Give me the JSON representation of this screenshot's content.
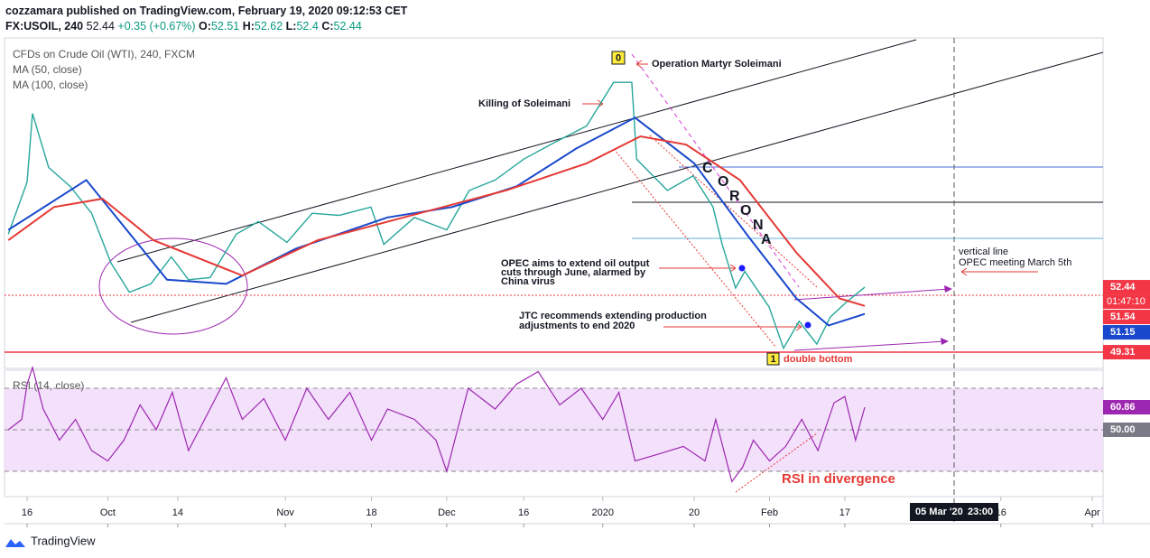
{
  "chart_data": {
    "type": "line",
    "header": {
      "published": "cozzamara published on TradingView.com, February 19, 2020 09:12:53 CET",
      "symbol": "FX:USOIL, 240",
      "last": 52.44,
      "change": "+0.35 (+0.67%)",
      "ohlc": [
        {
          "key": "O:",
          "value": 52.51
        },
        {
          "key": "H:",
          "value": 52.62
        },
        {
          "key": "L:",
          "value": 52.4
        },
        {
          "key": "C:",
          "value": 52.44
        }
      ]
    },
    "title": "CFDs on Crude Oil (WTI), 240, FXCM",
    "color": "#26a69a",
    "x": [
      -3.5,
      0,
      1,
      4,
      8,
      12,
      15.6,
      19,
      23,
      26.8,
      30,
      34,
      38.9,
      43,
      48.3,
      53,
      58,
      63.9,
      66.3,
      72,
      78,
      82.2,
      87,
      92.3,
      98,
      104,
      109,
      112.4,
      113.3,
      119,
      123.8,
      127.5,
      129.2,
      131.7,
      133.4,
      137.9,
      140.6,
      143.5,
      146.8,
      149.3,
      152.2,
      155.7
    ],
    "values": [
      55,
      57.5,
      60.8,
      58.2,
      57.3,
      56,
      53.6,
      52.2,
      52.6,
      53.9,
      52.8,
      52.9,
      55,
      55.6,
      54.6,
      56,
      55.9,
      56.3,
      54.5,
      55.8,
      55.2,
      57.1,
      57.6,
      58.6,
      59.4,
      60.2,
      62.3,
      62.3,
      58.6,
      57.1,
      57.8,
      56.3,
      54.5,
      52.4,
      53.2,
      51.5,
      49.5,
      50.8,
      49.7,
      51,
      51.7,
      52.44
    ],
    "series": [
      {
        "name": "MA (50, close)",
        "color": "#1848cc",
        "x": [
          -3.5,
          11,
          26,
          37,
          50,
          67,
          79,
          91,
          102,
          113,
          124,
          134,
          143,
          149,
          155.7
        ],
        "values": [
          55.2,
          57.6,
          52.8,
          52.6,
          54.3,
          55.8,
          56.3,
          57.3,
          59.1,
          60.6,
          58.4,
          54.9,
          51.9,
          50.6,
          51.15
        ]
      },
      {
        "name": "MA (100, close)",
        "color": "#e53935",
        "x": [
          -3.5,
          5,
          14,
          23.5,
          40,
          54,
          70,
          89,
          104,
          114,
          122.5,
          132.5,
          143,
          151,
          155.7
        ],
        "values": [
          54.7,
          56.3,
          56.7,
          54.7,
          53,
          54.7,
          55.8,
          57.1,
          58.4,
          59.7,
          59.3,
          57.6,
          54.1,
          51.9,
          51.54
        ]
      }
    ],
    "xlim": [
      -4.2,
      200
    ],
    "xticks": [
      {
        "value": 0,
        "label": "16"
      },
      {
        "value": 15,
        "label": "Oct"
      },
      {
        "value": 28,
        "label": "14"
      },
      {
        "value": 48,
        "label": "Nov"
      },
      {
        "value": 64,
        "label": "18"
      },
      {
        "value": 78,
        "label": "Dec"
      },
      {
        "value": 92.3,
        "label": "16"
      },
      {
        "value": 107,
        "label": "2020"
      },
      {
        "value": 124,
        "label": "20"
      },
      {
        "value": 138,
        "label": "Feb"
      },
      {
        "value": 152,
        "label": "17"
      },
      {
        "value": 181,
        "label": "16"
      },
      {
        "value": 198,
        "label": "Apr"
      }
    ],
    "ylim": [
      48.53,
      64.44
    ],
    "price_labels": [
      {
        "value": 52.44,
        "color": "#f23645",
        "countdown": "01:47:10"
      },
      {
        "value": 51.54,
        "color": "#f23645"
      },
      {
        "value": 51.15,
        "color": "#1848cc"
      },
      {
        "value": 49.31,
        "color": "#f23645"
      }
    ],
    "time_label": [
      "05 Mar '20",
      "23:00"
    ],
    "rsi": {
      "name": "RSI (14, close)",
      "color": "#9c27b0",
      "x": [
        -3.5,
        -1,
        0,
        1,
        3,
        6,
        9,
        12,
        15,
        18,
        21,
        24,
        27,
        30,
        33,
        37,
        40,
        44,
        48,
        52,
        56,
        60,
        64,
        67,
        72,
        76,
        78,
        82,
        87,
        91,
        95,
        99,
        103,
        107,
        110,
        113,
        117,
        122,
        126,
        128,
        131,
        133,
        135,
        138,
        141,
        144,
        147,
        150,
        152,
        154,
        155.7
      ],
      "values": [
        50,
        55,
        72,
        80,
        60,
        45,
        55,
        40,
        35,
        45,
        62,
        50,
        68,
        40,
        55,
        75,
        55,
        65,
        45,
        70,
        55,
        68,
        45,
        60,
        55,
        45,
        30,
        70,
        60,
        72,
        78,
        62,
        70,
        55,
        68,
        35,
        38,
        42,
        35,
        55,
        25,
        32,
        45,
        35,
        42,
        55,
        40,
        63,
        66,
        45,
        60.86
      ],
      "ylim": [
        17.8,
        78.7
      ],
      "band": [
        30,
        70
      ],
      "labels": [
        {
          "value": 60.86,
          "color": "#9c27b0"
        },
        {
          "value": 50,
          "label": "50.00",
          "color": "#787b86"
        }
      ]
    },
    "annotations": {
      "marker_0": "0",
      "marker_1": "1",
      "operation": "Operation Martyr Soleimani",
      "killing": "Killing of Soleimani",
      "corona": [
        "C",
        "O",
        "R",
        "O",
        "N",
        "A"
      ],
      "opec": [
        "OPEC aims to extend oil output",
        "cuts through June, alarmed by",
        "China virus"
      ],
      "jtc": [
        "JTC recommends extending production",
        "adjustments to end 2020"
      ],
      "vline": [
        "vertical line",
        "OPEC meeting March 5th"
      ],
      "double_bottom": "double bottom",
      "divergence": "RSI in divergence"
    },
    "footer": "TradingView"
  }
}
